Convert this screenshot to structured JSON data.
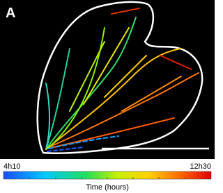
{
  "panel_label": "A",
  "colorbar": {
    "min_label": "4h10",
    "max_label": "12h30",
    "title": "Time (hours)"
  }
}
